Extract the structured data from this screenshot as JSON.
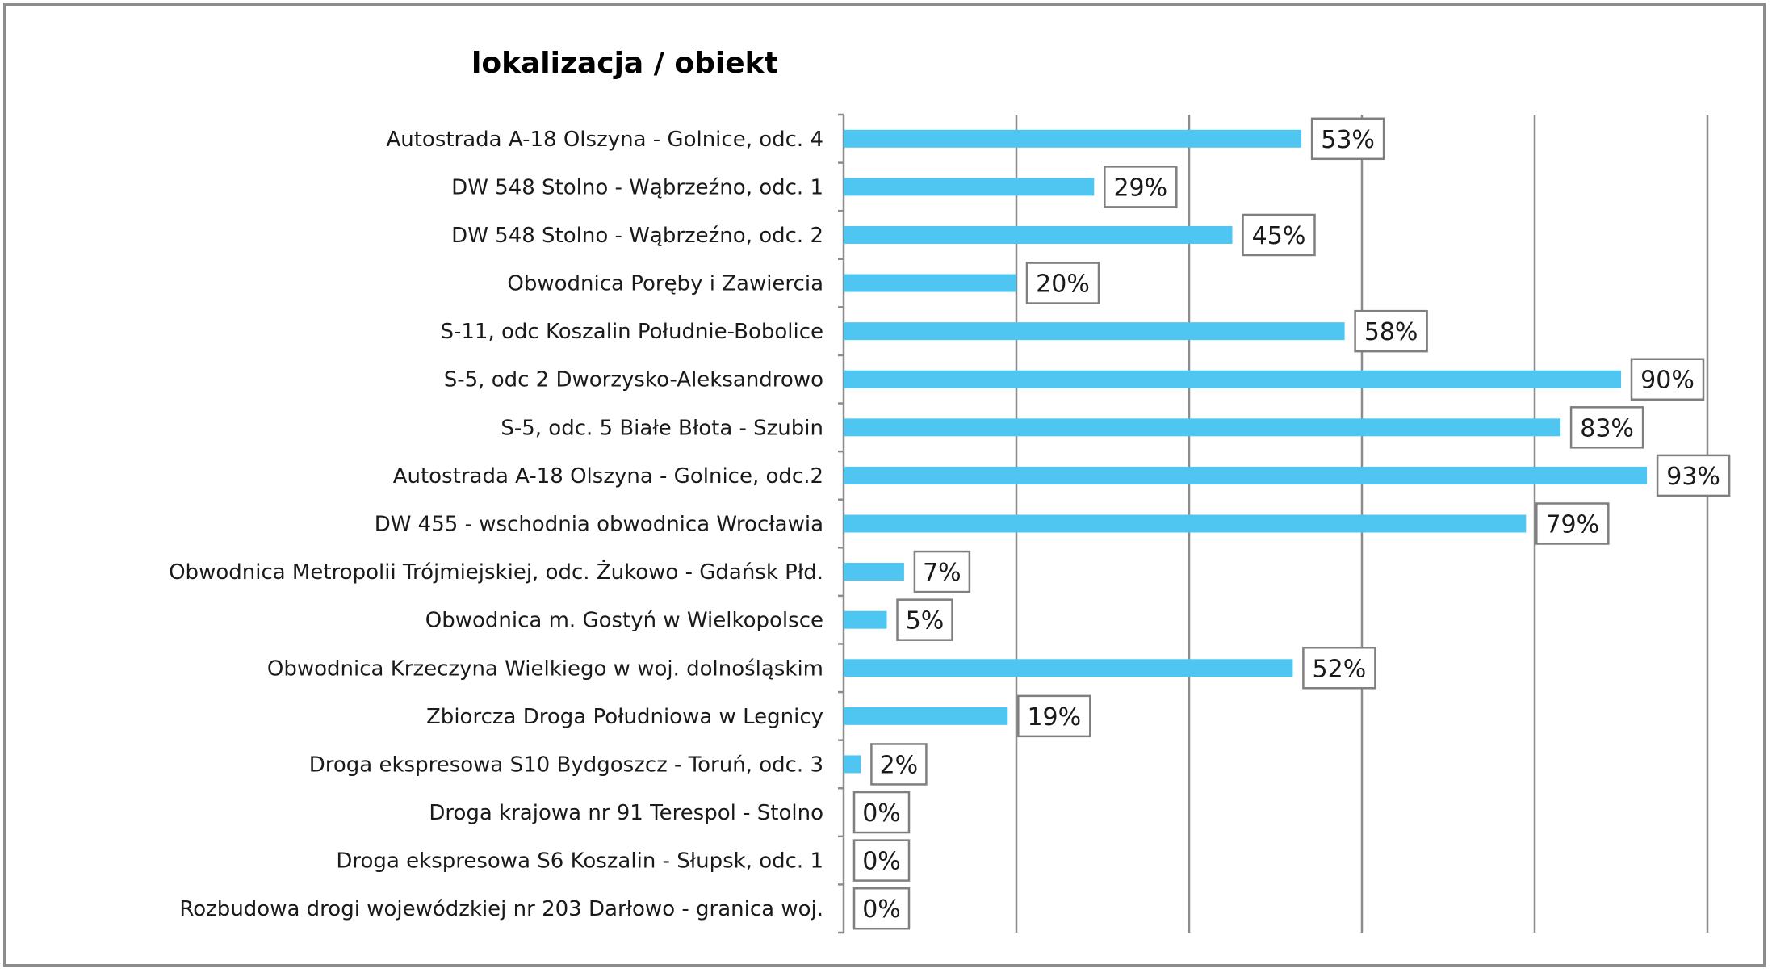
{
  "chart_data": {
    "type": "bar",
    "orientation": "horizontal",
    "title": "lokalizacja / obiekt",
    "xlabel": "",
    "ylabel": "",
    "xlim": [
      0,
      100
    ],
    "grid": true,
    "unit": "%",
    "bar_color": "#4fc6f2",
    "categories": [
      "Autostrada A-18 Olszyna - Golnice, odc. 4",
      "DW 548 Stolno - Wąbrzeźno, odc. 1",
      "DW 548 Stolno - Wąbrzeźno, odc. 2",
      "Obwodnica Poręby i Zawiercia",
      "S-11, odc Koszalin Południe-Bobolice",
      "S-5, odc 2 Dworzysko-Aleksandrowo",
      "S-5, odc. 5 Białe Błota - Szubin",
      "Autostrada A-18 Olszyna - Golnice, odc.2",
      "DW 455 - wschodnia obwodnica Wrocławia",
      "Obwodnica Metropolii Trójmiejskiej, odc. Żukowo - Gdańsk Płd.",
      "Obwodnica m. Gostyń w Wielkopolsce",
      "Obwodnica  Krzeczyna Wielkiego w woj. dolnośląskim",
      "Zbiorcza Droga Południowa w Legnicy",
      "Droga ekspresowa S10 Bydgoszcz - Toruń, odc. 3",
      "Droga krajowa nr 91 Terespol - Stolno",
      "Droga ekspresowa S6 Koszalin - Słupsk, odc. 1",
      "Rozbudowa drogi wojewódzkiej nr 203 Darłowo - granica woj."
    ],
    "values": [
      53,
      29,
      45,
      20,
      58,
      90,
      83,
      93,
      79,
      7,
      5,
      52,
      19,
      2,
      0,
      0,
      0
    ],
    "data_labels": [
      "53%",
      "29%",
      "45%",
      "20%",
      "58%",
      "90%",
      "83%",
      "93%",
      "79%",
      "7%",
      "5%",
      "52%",
      "19%",
      "2%",
      "0%",
      "0%",
      "0%"
    ]
  }
}
